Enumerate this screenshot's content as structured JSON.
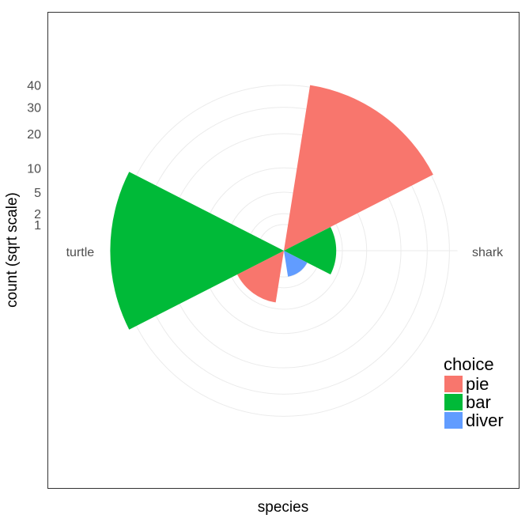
{
  "chart_data": {
    "type": "polar-bar",
    "xlabel": "species",
    "ylabel": "count (sqrt scale)",
    "y_scale": "sqrt",
    "y_ticks": [
      1,
      2,
      5,
      10,
      20,
      30,
      40
    ],
    "categories": [
      "shark",
      "turtle"
    ],
    "legend": {
      "title": "choice",
      "placement": "right"
    },
    "series": [
      {
        "name": "pie",
        "color": "#F8766D",
        "values": [
          41,
          4
        ]
      },
      {
        "name": "bar",
        "color": "#00BA38",
        "values": [
          4,
          44
        ]
      },
      {
        "name": "diver",
        "color": "#619CFF",
        "values": [
          1,
          null
        ]
      }
    ],
    "grid": true
  }
}
